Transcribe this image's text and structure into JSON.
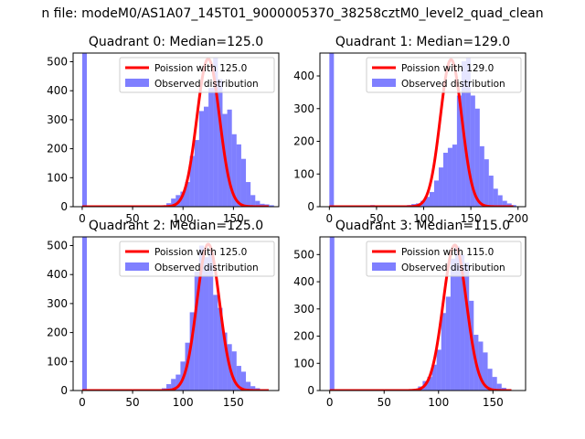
{
  "suptitle": "n file: modeM0/AS1A07_145T01_9000005370_38258cztM0_level2_quad_clean",
  "chart_data": [
    {
      "type": "histogram+line",
      "title": "Quadrant 0: Median=125.0",
      "median": 125.0,
      "legend": [
        "Poission with 125.0",
        "Observed distribution"
      ],
      "legend_position": "top-right",
      "xlim": [
        -9,
        195
      ],
      "ylim": [
        0,
        530
      ],
      "xticks": [
        0,
        50,
        100,
        150
      ],
      "yticks": [
        0,
        100,
        200,
        300,
        400,
        500
      ],
      "bin_width": 4.64,
      "hist_start": 0,
      "hist_values": [
        530,
        0,
        0,
        0,
        0,
        0,
        0,
        0,
        0,
        0,
        0,
        0,
        0,
        0,
        0,
        0,
        0,
        5,
        12,
        28,
        40,
        52,
        85,
        175,
        230,
        330,
        345,
        410,
        515,
        440,
        320,
        335,
        250,
        215,
        165,
        85,
        40,
        20,
        10,
        8,
        5
      ],
      "poisson_peak": 510,
      "poisson_sigma": 11.2,
      "curve_x_end": 185
    },
    {
      "type": "histogram+line",
      "title": "Quadrant 1: Median=129.0",
      "median": 129.0,
      "legend": [
        "Poission with 129.0",
        "Observed distribution"
      ],
      "legend_position": "top-right",
      "xlim": [
        -10,
        208
      ],
      "ylim": [
        0,
        470
      ],
      "xticks": [
        0,
        50,
        100,
        150,
        200
      ],
      "yticks": [
        0,
        100,
        200,
        300,
        400
      ],
      "bin_width": 4.83,
      "hist_start": 0,
      "hist_values": [
        470,
        0,
        0,
        0,
        0,
        0,
        0,
        0,
        3,
        5,
        3,
        0,
        0,
        0,
        0,
        0,
        3,
        5,
        8,
        10,
        18,
        30,
        45,
        80,
        120,
        165,
        180,
        190,
        340,
        445,
        455,
        340,
        300,
        185,
        145,
        95,
        55,
        35,
        18,
        10,
        5
      ],
      "poisson_peak": 450,
      "poisson_sigma": 11.4,
      "curve_x_end": 195
    },
    {
      "type": "histogram+line",
      "title": "Quadrant 2: Median=125.0",
      "median": 125.0,
      "legend": [
        "Poission with 125.0",
        "Observed distribution"
      ],
      "legend_position": "top-right",
      "xlim": [
        -9,
        195
      ],
      "ylim": [
        0,
        530
      ],
      "xticks": [
        0,
        50,
        100,
        150
      ],
      "yticks": [
        0,
        100,
        200,
        300,
        400,
        500
      ],
      "bin_width": 4.64,
      "hist_start": 0,
      "hist_values": [
        530,
        0,
        0,
        0,
        0,
        0,
        0,
        0,
        0,
        0,
        0,
        0,
        0,
        0,
        0,
        0,
        0,
        8,
        22,
        40,
        55,
        100,
        165,
        270,
        410,
        500,
        460,
        480,
        330,
        285,
        200,
        160,
        135,
        85,
        65,
        30,
        15,
        8
      ],
      "poisson_peak": 505,
      "poisson_sigma": 11.2,
      "curve_x_end": 185
    },
    {
      "type": "histogram+line",
      "title": "Quadrant 3: Median=115.0",
      "median": 115.0,
      "legend": [
        "Poission with 115.0",
        "Observed distribution"
      ],
      "legend_position": "top-right",
      "xlim": [
        -9,
        180
      ],
      "ylim": [
        0,
        565
      ],
      "xticks": [
        0,
        50,
        100,
        150
      ],
      "yticks": [
        0,
        100,
        200,
        300,
        400,
        500
      ],
      "bin_width": 4.27,
      "hist_start": 0,
      "hist_values": [
        565,
        0,
        0,
        0,
        0,
        0,
        0,
        0,
        0,
        0,
        0,
        0,
        0,
        0,
        0,
        0,
        0,
        0,
        5,
        15,
        35,
        50,
        95,
        150,
        285,
        345,
        485,
        530,
        500,
        470,
        330,
        205,
        180,
        140,
        80,
        50,
        25,
        10,
        5
      ],
      "poisson_peak": 535,
      "poisson_sigma": 10.7,
      "curve_x_end": 167
    }
  ]
}
